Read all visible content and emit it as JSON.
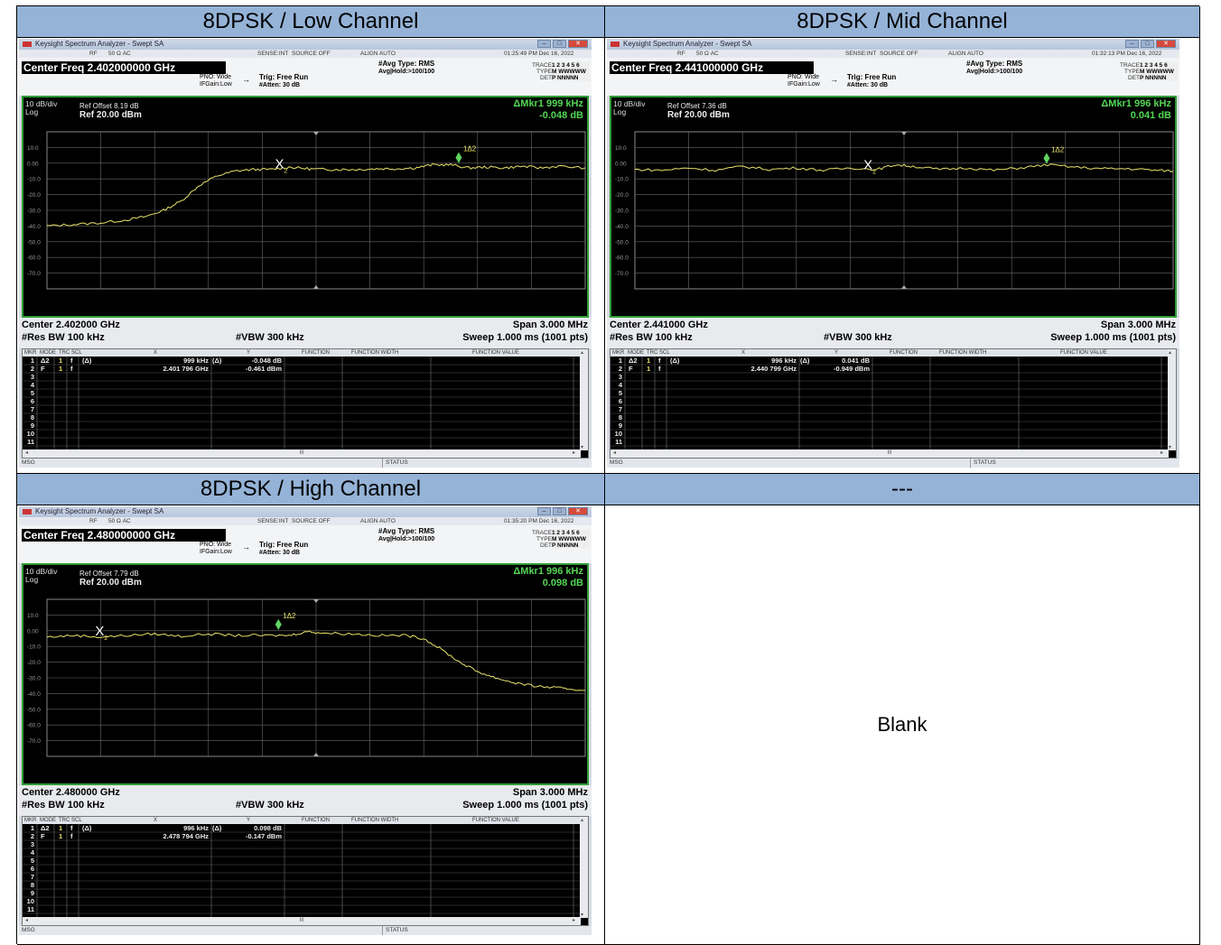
{
  "headers": {
    "low": "8DPSK / Low Channel",
    "mid": "8DPSK / Mid Channel",
    "high": "8DPSK / High Channel",
    "empty": "---"
  },
  "blank_text": "Blank",
  "common": {
    "window_title": "Keysight Spectrum Analyzer - Swept SA",
    "rf": "RF",
    "impedance": "50 Ω  AC",
    "sense": "SENSE:INT",
    "source": "SOURCE OFF",
    "align": "ALIGN AUTO",
    "pno": "PNO: Wide",
    "ifgain": "IFGain:Low",
    "trig": "Trig: Free Run",
    "atten": "#Atten: 30 dB",
    "avg_type": "#Avg Type: RMS",
    "avg_hold": "Avg|Hold:>100/100",
    "trace_lbl": "TRACE",
    "type_lbl": "TYPE",
    "det_lbl": "DET",
    "trace_vals": "1 2 3 4 5 6",
    "type_vals": "M WWWWW",
    "det_vals": "P NNNNN",
    "scale": "10 dB/div",
    "log": "Log",
    "ref": "Ref 20.00 dBm",
    "res_bw": "#Res BW 100 kHz",
    "vbw": "#VBW 300 kHz",
    "span": "Span 3.000 MHz",
    "sweep": "Sweep  1.000 ms (1001 pts)",
    "col_mkr": "MKR",
    "col_mode": "MODE",
    "col_trc": "TRC",
    "col_scl": "SCL",
    "col_x": "X",
    "col_y": "Y",
    "col_function": "FUNCTION",
    "col_function_width": "FUNCTION WIDTH",
    "col_function_value": "FUNCTION VALUE",
    "msg": "MSG",
    "status": "STATUS",
    "marker_delta_label": "1Δ2",
    "marker_ref_label": "2",
    "scroll_mid": "III"
  },
  "chart_data": [
    {
      "type": "line",
      "title": "8DPSK / Low Channel",
      "center": "Center 2.402000 GHz",
      "center_freq": "Center Freq 2.402000000 GHz",
      "timestamp": "01:25:49 PM Dec 16, 2022",
      "ref_offset": "Ref Offset 8.19 dB",
      "delta_marker": "ΔMkr1 999 kHz",
      "delta_value": "-0.048 dB",
      "x_unit": "MHz offset from center",
      "xlim": [
        -1.5,
        1.5
      ],
      "ylim": [
        -80,
        20
      ],
      "y_ticks": [
        "10.0",
        "0.00",
        "-10.0",
        "-20.0",
        "-30.0",
        "-40.0",
        "-50.0",
        "-60.0",
        "-70.0"
      ],
      "x": [
        -1.5,
        -1.35,
        -1.2,
        -1.05,
        -0.95,
        -0.85,
        -0.75,
        -0.65,
        -0.55,
        -0.45,
        -0.35,
        -0.25,
        -0.15,
        -0.05,
        0.05,
        0.15,
        0.25,
        0.35,
        0.45,
        0.55,
        0.65,
        0.75,
        0.85,
        0.95,
        1.05,
        1.15,
        1.25,
        1.35,
        1.5
      ],
      "y": [
        -40,
        -39,
        -38,
        -36,
        -34,
        -30,
        -24,
        -14,
        -8,
        -5,
        -4,
        -4,
        -2.5,
        -3.5,
        -4,
        -4,
        -4,
        -3.5,
        -3.5,
        -3,
        -1,
        -1,
        -3,
        -2.5,
        -3,
        -2,
        -3,
        -2,
        -3
      ],
      "marker_ref": {
        "x": -0.204,
        "y": -0.461
      },
      "marker_delta": {
        "x": 0.795,
        "y": -0.509
      },
      "table": [
        {
          "n": "1",
          "mode": "Δ2",
          "trc": "1",
          "scl": "f",
          "extra": "(Δ)",
          "x": "999 kHz",
          "xd": "(Δ)",
          "y": "-0.048 dB"
        },
        {
          "n": "2",
          "mode": "F",
          "trc": "1",
          "scl": "f",
          "extra": "",
          "x": "2.401 796 GHz",
          "xd": "",
          "y": "-0.461 dBm"
        }
      ]
    },
    {
      "type": "line",
      "title": "8DPSK / Mid Channel",
      "center": "Center 2.441000 GHz",
      "center_freq": "Center Freq 2.441000000 GHz",
      "timestamp": "01:32:13 PM Dec 16, 2022",
      "ref_offset": "Ref Offset 7.36 dB",
      "delta_marker": "ΔMkr1 996 kHz",
      "delta_value": "0.041 dB",
      "x_unit": "MHz offset from center",
      "xlim": [
        -1.5,
        1.5
      ],
      "ylim": [
        -80,
        20
      ],
      "y_ticks": [
        "10.0",
        "0.00",
        "-10.0",
        "-20.0",
        "-30.0",
        "-40.0",
        "-50.0",
        "-60.0",
        "-70.0"
      ],
      "x": [
        -1.5,
        -1.35,
        -1.2,
        -1.05,
        -0.9,
        -0.75,
        -0.6,
        -0.45,
        -0.3,
        -0.15,
        -0.05,
        0.05,
        0.2,
        0.35,
        0.5,
        0.65,
        0.8,
        0.95,
        1.1,
        1.25,
        1.4,
        1.5
      ],
      "y": [
        -4,
        -4.5,
        -3,
        -4.5,
        -2,
        -4,
        -3,
        -4.5,
        -3,
        -4,
        -1,
        -2,
        -4,
        -3,
        -4.5,
        -3,
        -1,
        -2.5,
        -3.5,
        -3.5,
        -4.5,
        -5
      ],
      "marker_ref": {
        "x": -0.201,
        "y": -0.949
      },
      "marker_delta": {
        "x": 0.795,
        "y": -0.908
      },
      "table": [
        {
          "n": "1",
          "mode": "Δ2",
          "trc": "1",
          "scl": "f",
          "extra": "(Δ)",
          "x": "996 kHz",
          "xd": "(Δ)",
          "y": "0.041 dB"
        },
        {
          "n": "2",
          "mode": "F",
          "trc": "1",
          "scl": "f",
          "extra": "",
          "x": "2.440 799 GHz",
          "xd": "",
          "y": "-0.949 dBm"
        }
      ]
    },
    {
      "type": "line",
      "title": "8DPSK / High Channel",
      "center": "Center 2.480000 GHz",
      "center_freq": "Center Freq 2.480000000 GHz",
      "timestamp": "01:35:20 PM Dec 16, 2022",
      "ref_offset": "Ref Offset 7.79 dB",
      "delta_marker": "ΔMkr1 996 kHz",
      "delta_value": "0.098 dB",
      "x_unit": "MHz offset from center",
      "xlim": [
        -1.5,
        1.5
      ],
      "ylim": [
        -80,
        20
      ],
      "y_ticks": [
        "10.0",
        "0.00",
        "-10.0",
        "-20.0",
        "-30.0",
        "-40.0",
        "-50.0",
        "-60.0",
        "-70.0"
      ],
      "x": [
        -1.5,
        -1.35,
        -1.2,
        -1.05,
        -0.9,
        -0.75,
        -0.6,
        -0.45,
        -0.3,
        -0.15,
        -0.05,
        0.05,
        0.2,
        0.35,
        0.5,
        0.6,
        0.7,
        0.8,
        0.9,
        1.0,
        1.1,
        1.2,
        1.3,
        1.4,
        1.5
      ],
      "y": [
        -4,
        -3,
        -4,
        -3,
        -2,
        -3.5,
        -2,
        -3,
        -3,
        -3,
        -0.5,
        -1.5,
        -2,
        -3,
        -3,
        -5,
        -12,
        -20,
        -26,
        -30,
        -33,
        -35,
        -36,
        -37,
        -38
      ],
      "marker_ref": {
        "x": -1.206,
        "y": -0.147
      },
      "marker_delta": {
        "x": -0.21,
        "y": -0.049
      },
      "table": [
        {
          "n": "1",
          "mode": "Δ2",
          "trc": "1",
          "scl": "f",
          "extra": "(Δ)",
          "x": "996 kHz",
          "xd": "(Δ)",
          "y": "0.098 dB"
        },
        {
          "n": "2",
          "mode": "F",
          "trc": "1",
          "scl": "f",
          "extra": "",
          "x": "2.478 794 GHz",
          "xd": "",
          "y": "-0.147 dBm"
        }
      ]
    }
  ],
  "row_numbers": [
    "1",
    "2",
    "3",
    "4",
    "5",
    "6",
    "7",
    "8",
    "9",
    "10",
    "11"
  ],
  "colors": {
    "header_bg": "#95b3d7",
    "trace": "#e8e36a",
    "marker": "#5fd35f",
    "grid": "#6a6a6a",
    "delta_text": "#54d654",
    "screen_border": "#2f9c34"
  }
}
